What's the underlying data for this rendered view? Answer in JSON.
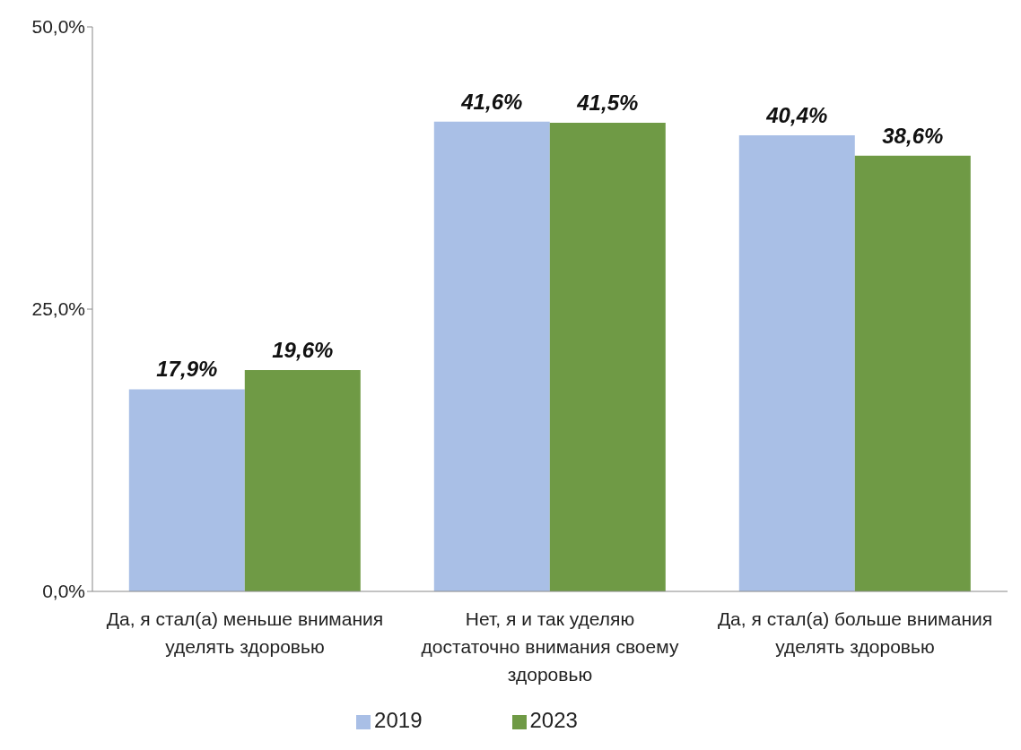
{
  "chart_data": {
    "type": "bar",
    "categories": [
      "Да, я стал(а) меньше внимания уделять здоровью",
      "Нет, я и так уделяю достаточно внимания своему здоровью",
      "Да, я стал(а) больше внимания уделять здоровью"
    ],
    "series": [
      {
        "name": "2019",
        "color": "#a9bfe6",
        "values": [
          17.9,
          41.6,
          40.4
        ],
        "value_labels": [
          "17,9%",
          "41,6%",
          "40,4%"
        ]
      },
      {
        "name": "2023",
        "color": "#6f9a45",
        "values": [
          19.6,
          41.5,
          38.6
        ],
        "value_labels": [
          "19,6%",
          "41,5%",
          "38,6%"
        ]
      }
    ],
    "ylim": [
      0,
      50
    ],
    "yticks": [
      {
        "value": 0,
        "label": "0,0%"
      },
      {
        "value": 25,
        "label": "25,0%"
      },
      {
        "value": 50,
        "label": "50,0%"
      }
    ],
    "grid": false,
    "legend": "bottom"
  }
}
